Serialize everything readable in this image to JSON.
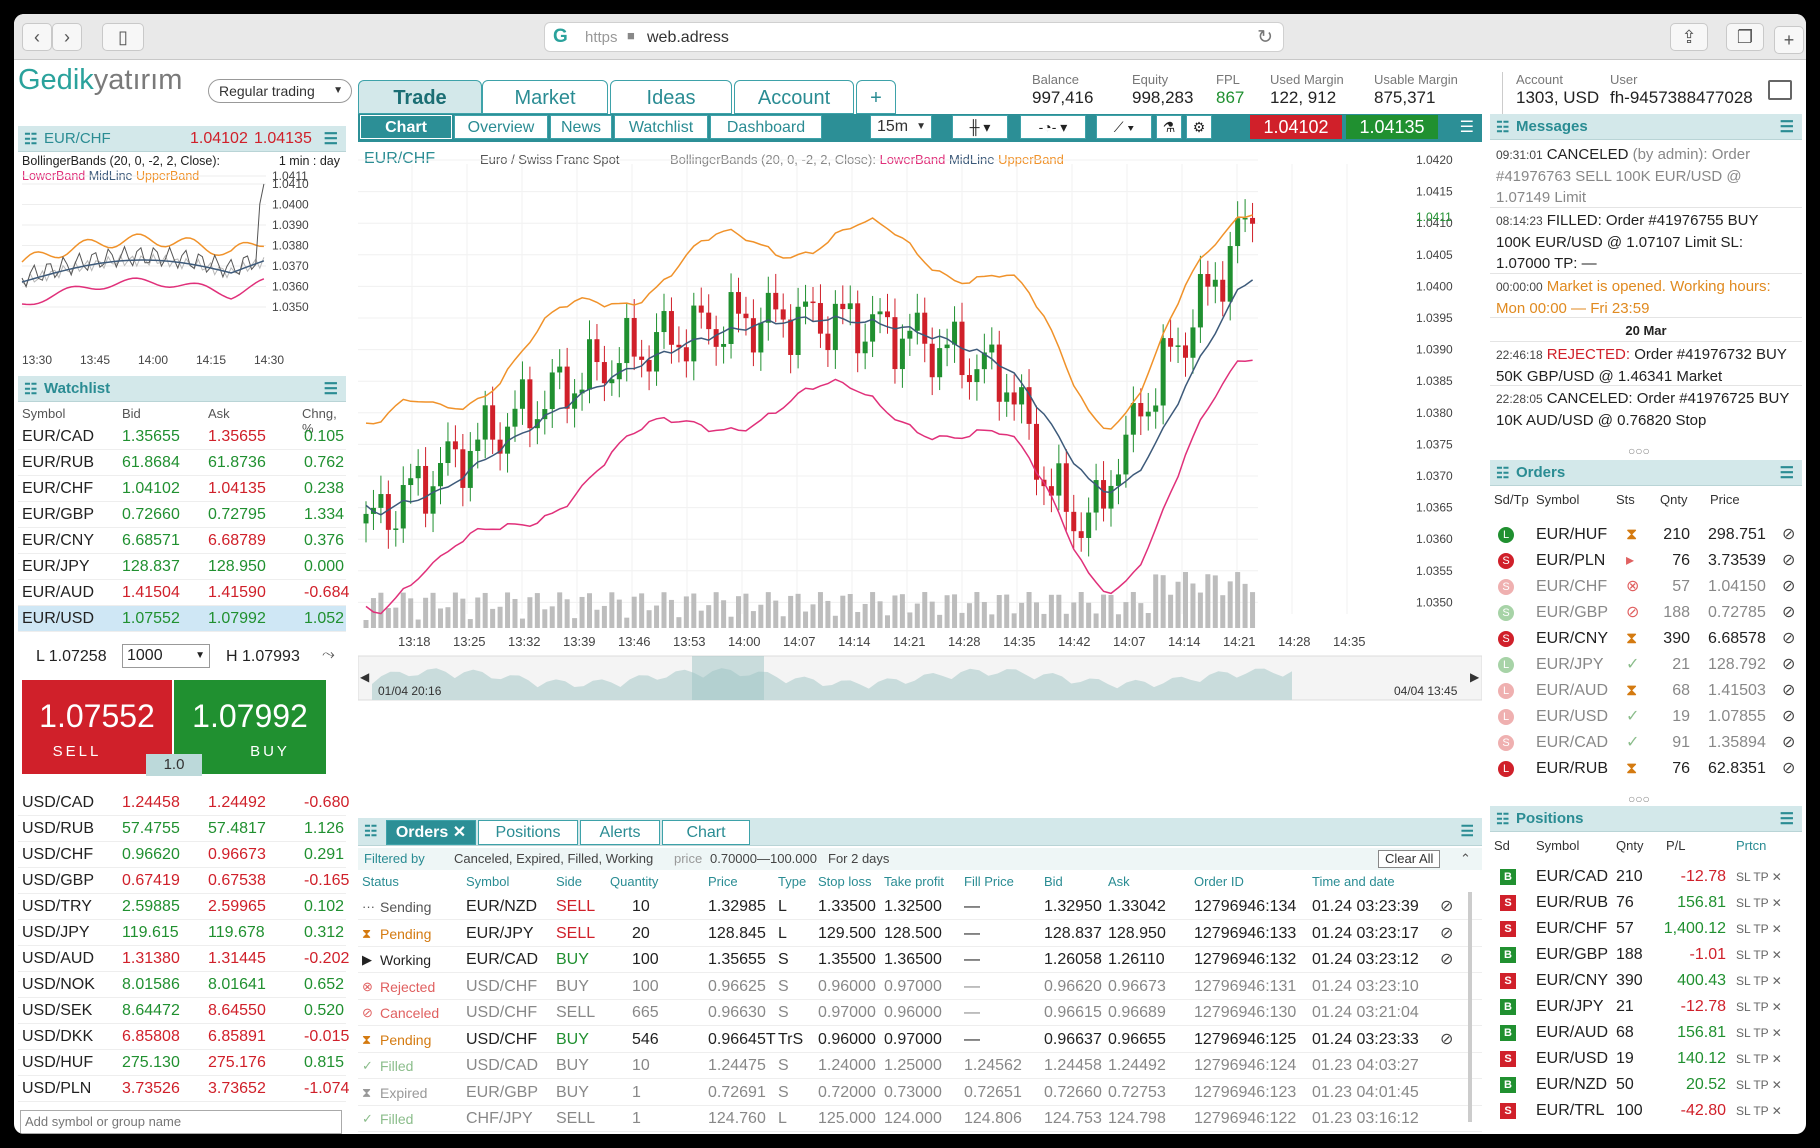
{
  "browser": {
    "https": "https",
    "url": "web.adress",
    "lock": "🔒"
  },
  "brand": {
    "a": "Gedik",
    "b": "yatırım",
    "mode": "Regular trading"
  },
  "main_tabs": [
    "Trade",
    "Market",
    "Ideas",
    "Account",
    "+"
  ],
  "sub_tabs": [
    "Chart",
    "Overview",
    "News",
    "Watchlist",
    "Dashboard"
  ],
  "toolbar": {
    "interval": "15m",
    "sell": "1.04102",
    "buy": "1.04135"
  },
  "account": {
    "balance_l": "Balance",
    "balance": "997,416",
    "equity_l": "Equity",
    "equity": "998,283",
    "fpl_l": "FPL",
    "fpl": "867",
    "used_l": "Used Margin",
    "used": "122, 912",
    "usable_l": "Usable Margin",
    "usable": "875,371",
    "acct_l": "Account",
    "acct": "1303, USD",
    "user_l": "User",
    "user": "fh-9457388477028"
  },
  "mini": {
    "symbol": "EUR/CHF",
    "bid": "1.04102",
    "ask": "1.04135",
    "indicator": "BollingerBands (20, 0, -2, 2, Close):",
    "tf": "1 min : day",
    "lower": "LowerBand",
    "mid": "MidLine",
    "upper": "UpperBand",
    "yticks": [
      "1.0411",
      "1.0410",
      "1.0400",
      "1.0390",
      "1.0380",
      "1.0370",
      "1.0360",
      "1.0350"
    ],
    "xticks": [
      "13:30",
      "13:45",
      "14:00",
      "14:15",
      "14:30"
    ]
  },
  "watchlist": {
    "title": "Watchlist",
    "cols": [
      "Symbol",
      "Bid",
      "Ask",
      "Chng, %"
    ],
    "rows": [
      [
        "EUR/CAD",
        "1.35655",
        "1.35655",
        "0.105"
      ],
      [
        "EUR/RUB",
        "61.8684",
        "61.8736",
        "0.762"
      ],
      [
        "EUR/CHF",
        "1.04102",
        "1.04135",
        "0.238"
      ],
      [
        "EUR/GBP",
        "0.72660",
        "0.72795",
        "1.334"
      ],
      [
        "EUR/CNY",
        "6.68571",
        "6.68789",
        "0.376"
      ],
      [
        "EUR/JPY",
        "128.837",
        "128.950",
        "0.000"
      ],
      [
        "EUR/AUD",
        "1.41504",
        "1.41590",
        "-0.684"
      ],
      [
        "EUR/USD",
        "1.07552",
        "1.07992",
        "1.052"
      ]
    ],
    "low": "L 1.07258",
    "qty": "1000",
    "high": "H 1.07993",
    "sell_price": "1.07552",
    "buy_price": "1.07992",
    "sell": "SELL",
    "buy": "BUY",
    "spread": "1.0",
    "rows2": [
      [
        "USD/CAD",
        "1.24458",
        "1.24492",
        "-0.680"
      ],
      [
        "USD/RUB",
        "57.4755",
        "57.4817",
        "1.126"
      ],
      [
        "USD/CHF",
        "0.96620",
        "0.96673",
        "0.291"
      ],
      [
        "USD/GBP",
        "0.67419",
        "0.67538",
        "-0.165"
      ],
      [
        "USD/TRY",
        "2.59885",
        "2.59965",
        "0.102"
      ],
      [
        "USD/JPY",
        "119.615",
        "119.678",
        "0.312"
      ],
      [
        "USD/AUD",
        "1.31380",
        "1.31445",
        "-0.202"
      ],
      [
        "USD/NOK",
        "8.01586",
        "8.01641",
        "0.652"
      ],
      [
        "USD/SEK",
        "8.64472",
        "8.64550",
        "0.520"
      ],
      [
        "USD/DKK",
        "6.85808",
        "6.85891",
        "-0.015"
      ],
      [
        "USD/HUF",
        "275.130",
        "275.176",
        "0.815"
      ],
      [
        "USD/PLN",
        "3.73526",
        "3.73652",
        "-1.074"
      ]
    ],
    "add_placeholder": "Add symbol or group name"
  },
  "chart": {
    "symbol": "EUR/CHF",
    "desc": "Euro / Swiss Franc Spot",
    "ind": "BollingerBands (20, 0, -2, 2, Close):",
    "lower": "LowerBand",
    "mid": "MidLine",
    "upper": "UpperBand",
    "last": "1.0411",
    "yticks": [
      "1.0420",
      "1.0415",
      "1.0410",
      "1.0405",
      "1.0400",
      "1.0395",
      "1.0390",
      "1.0385",
      "1.0380",
      "1.0375",
      "1.0370",
      "1.0365",
      "1.0360",
      "1.0355",
      "1.0350"
    ],
    "xticks": [
      "13:18",
      "13:25",
      "13:32",
      "13:39",
      "13:46",
      "13:53",
      "14:00",
      "14:07",
      "14:14",
      "14:21",
      "14:28",
      "14:35",
      "14:42",
      "14:07",
      "14:14",
      "14:21",
      "14:28",
      "14:35"
    ],
    "nav_left": "01/04 20:16",
    "nav_right": "04/04 13:45"
  },
  "messages": {
    "title": "Messages",
    "items": [
      {
        "t": "09:31:01",
        "k": "CANCELED",
        "x": " (by admin): Order #41976763 SELL 100K EUR/USD @ 1.07149 Limit"
      },
      {
        "t": "08:14:23",
        "k": "FILLED:",
        "x": " Order #41976755 BUY 100K EUR/USD @ 1.07107 Limit SL: 1.07000 TP: —"
      },
      {
        "t": "00:00:00",
        "k": "Market is opened. Working hours: Mon 00:00 — Fri 23:59",
        "x": ""
      },
      {
        "t": "",
        "k": "20 Mar",
        "x": ""
      },
      {
        "t": "22:46:18",
        "k": "REJECTED:",
        "x": " Order #41976732 BUY 50K GBP/USD @ 1.46341 Market"
      },
      {
        "t": "22:28:05",
        "k": "CANCELED:",
        "x": " Order #41976725 BUY 10K AUD/USD @ 0.76820 Stop"
      }
    ]
  },
  "orders_side": {
    "title": "Orders",
    "cols": [
      "Sd/Tp",
      "Symbol",
      "Sts",
      "Qnty",
      "Price"
    ],
    "rows": [
      [
        "EUR/HUF",
        "210",
        "298.751"
      ],
      [
        "EUR/PLN",
        "76",
        "3.73539"
      ],
      [
        "EUR/CHF",
        "57",
        "1.04150"
      ],
      [
        "EUR/GBP",
        "188",
        "0.72785"
      ],
      [
        "EUR/CNY",
        "390",
        "6.68578"
      ],
      [
        "EUR/JPY",
        "21",
        "128.792"
      ],
      [
        "EUR/AUD",
        "68",
        "1.41503"
      ],
      [
        "EUR/USD",
        "19",
        "1.07855"
      ],
      [
        "EUR/CAD",
        "91",
        "1.35894"
      ],
      [
        "EUR/RUB",
        "76",
        "62.8351"
      ]
    ]
  },
  "positions": {
    "title": "Positions",
    "cols": [
      "Sd",
      "Symbol",
      "Qnty",
      "P/L",
      "Prtcn"
    ],
    "rows": [
      [
        "B",
        "EUR/CAD",
        "210",
        "-12.78"
      ],
      [
        "S",
        "EUR/RUB",
        "76",
        "156.81"
      ],
      [
        "S",
        "EUR/CHF",
        "57",
        "1,400.12"
      ],
      [
        "B",
        "EUR/GBP",
        "188",
        "-1.01"
      ],
      [
        "S",
        "EUR/CNY",
        "390",
        "400.43"
      ],
      [
        "B",
        "EUR/JPY",
        "21",
        "-12.78"
      ],
      [
        "B",
        "EUR/AUD",
        "68",
        "156.81"
      ],
      [
        "S",
        "EUR/USD",
        "19",
        "140.12"
      ],
      [
        "B",
        "EUR/NZD",
        "50",
        "20.52"
      ],
      [
        "S",
        "EUR/TRL",
        "100",
        "-42.80"
      ]
    ],
    "sltp": "SL TP ✕"
  },
  "bottom": {
    "tabs": [
      "Orders",
      "Positions",
      "Alerts",
      "Chart"
    ],
    "filter": "Filtered by",
    "filter_vals": "Canceled, Expired, Filled, Working",
    "price_l": "price",
    "price_v": "0.70000—100.000",
    "days": "For 2 days",
    "clear": "Clear All",
    "cols": [
      "Status",
      "Symbol",
      "Side",
      "Quantity",
      "Price",
      "Type",
      "Stop loss",
      "Take profit",
      "Fill Price",
      "Bid",
      "Ask",
      "Order ID",
      "Time and date"
    ],
    "rows": [
      [
        "Sending",
        "EUR/NZD",
        "SELL",
        "10",
        "1.32985",
        "L",
        "1.33500",
        "1.32500",
        "—",
        "1.32950",
        "1.33042",
        "12796946:134",
        "01.24 03:23:39"
      ],
      [
        "Pending",
        "EUR/JPY",
        "SELL",
        "20",
        "128.845",
        "L",
        "129.500",
        "128.500",
        "—",
        "128.837",
        "128.950",
        "12796946:133",
        "01.24 03:23:17"
      ],
      [
        "Working",
        "EUR/CAD",
        "BUY",
        "100",
        "1.35655",
        "S",
        "1.35500",
        "1.36500",
        "—",
        "1.26058",
        "1.26110",
        "12796946:132",
        "01.24 03:23:12"
      ],
      [
        "Rejected",
        "USD/CHF",
        "BUY",
        "100",
        "0.96625",
        "S",
        "0.96000",
        "0.97000",
        "—",
        "0.96620",
        "0.96673",
        "12796946:131",
        "01.24 03:23:10"
      ],
      [
        "Canceled",
        "USD/CHF",
        "SELL",
        "665",
        "0.96630",
        "S",
        "0.97000",
        "0.96000",
        "—",
        "0.96615",
        "0.96689",
        "12796946:130",
        "01.24 03:21:04"
      ],
      [
        "Pending",
        "USD/CHF",
        "BUY",
        "546",
        "0.96645T",
        "TrS",
        "0.96000",
        "0.97000",
        "—",
        "0.96637",
        "0.96655",
        "12796946:125",
        "01.24 03:23:33"
      ],
      [
        "Filled",
        "USD/CAD",
        "BUY",
        "10",
        "1.24475",
        "S",
        "1.24000",
        "1.25000",
        "1.24562",
        "1.24458",
        "1.24492",
        "12796946:124",
        "01.23 04:03:27"
      ],
      [
        "Expired",
        "EUR/GBP",
        "BUY",
        "1",
        "0.72691",
        "S",
        "0.72000",
        "0.73000",
        "0.72651",
        "0.72660",
        "0.72753",
        "12796946:123",
        "01.23 04:01:45"
      ],
      [
        "Filled",
        "CHF/JPY",
        "SELL",
        "1",
        "124.760",
        "L",
        "125.000",
        "124.000",
        "124.806",
        "124.753",
        "124.798",
        "12796946:122",
        "01.23 03:16:12"
      ]
    ]
  }
}
